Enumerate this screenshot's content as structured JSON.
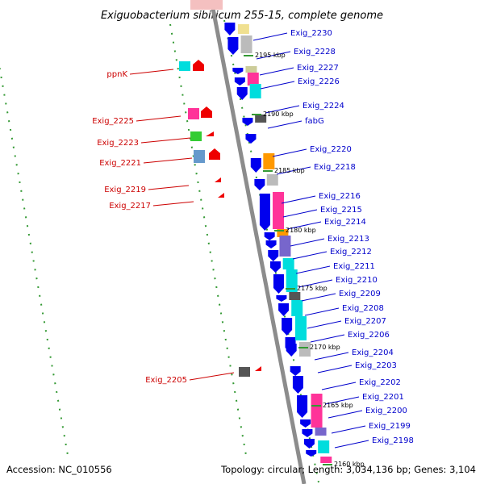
{
  "title": "Exiguobacterium sibiricum 255-15, complete genome",
  "footer": {
    "accession": "Accession: NC_010556",
    "summary": "Topology: circular; Length: 3,034,136 bp; Genes: 3,104"
  },
  "positions": [
    "2195 kbp",
    "2190 kbp",
    "2185 kbp",
    "2180 kbp",
    "2175 kbp",
    "2170 kbp",
    "2165 kbp",
    "2160 kbp"
  ],
  "right_genes": [
    "Exig_2230",
    "Exig_2228",
    "Exig_2227",
    "Exig_2226",
    "Exig_2224",
    "fabG",
    "Exig_2220",
    "Exig_2218",
    "Exig_2216",
    "Exig_2215",
    "Exig_2214",
    "Exig_2213",
    "Exig_2212",
    "Exig_2211",
    "Exig_2210",
    "Exig_2209",
    "Exig_2208",
    "Exig_2207",
    "Exig_2206",
    "Exig_2204",
    "Exig_2203",
    "Exig_2202",
    "Exig_2201",
    "Exig_2200",
    "Exig_2199",
    "Exig_2198"
  ],
  "left_genes": [
    "ppnK",
    "Exig_2225",
    "Exig_2223",
    "Exig_2221",
    "Exig_2219",
    "Exig_2217",
    "Exig_2205"
  ],
  "colors": {
    "backbone": "#8c8c8c",
    "forward_arrow": "#0000ee",
    "reverse_arrow": "#ee0000",
    "right_label": "#0000cc",
    "left_label": "#cc0000",
    "tick": "#339933",
    "categories": [
      "#ff3399",
      "#00dddd",
      "#ff9900",
      "#7766cc",
      "#6699cc",
      "#33cc33",
      "#cccc99",
      "#555555",
      "#bbbbbb",
      "#f0e090"
    ]
  }
}
